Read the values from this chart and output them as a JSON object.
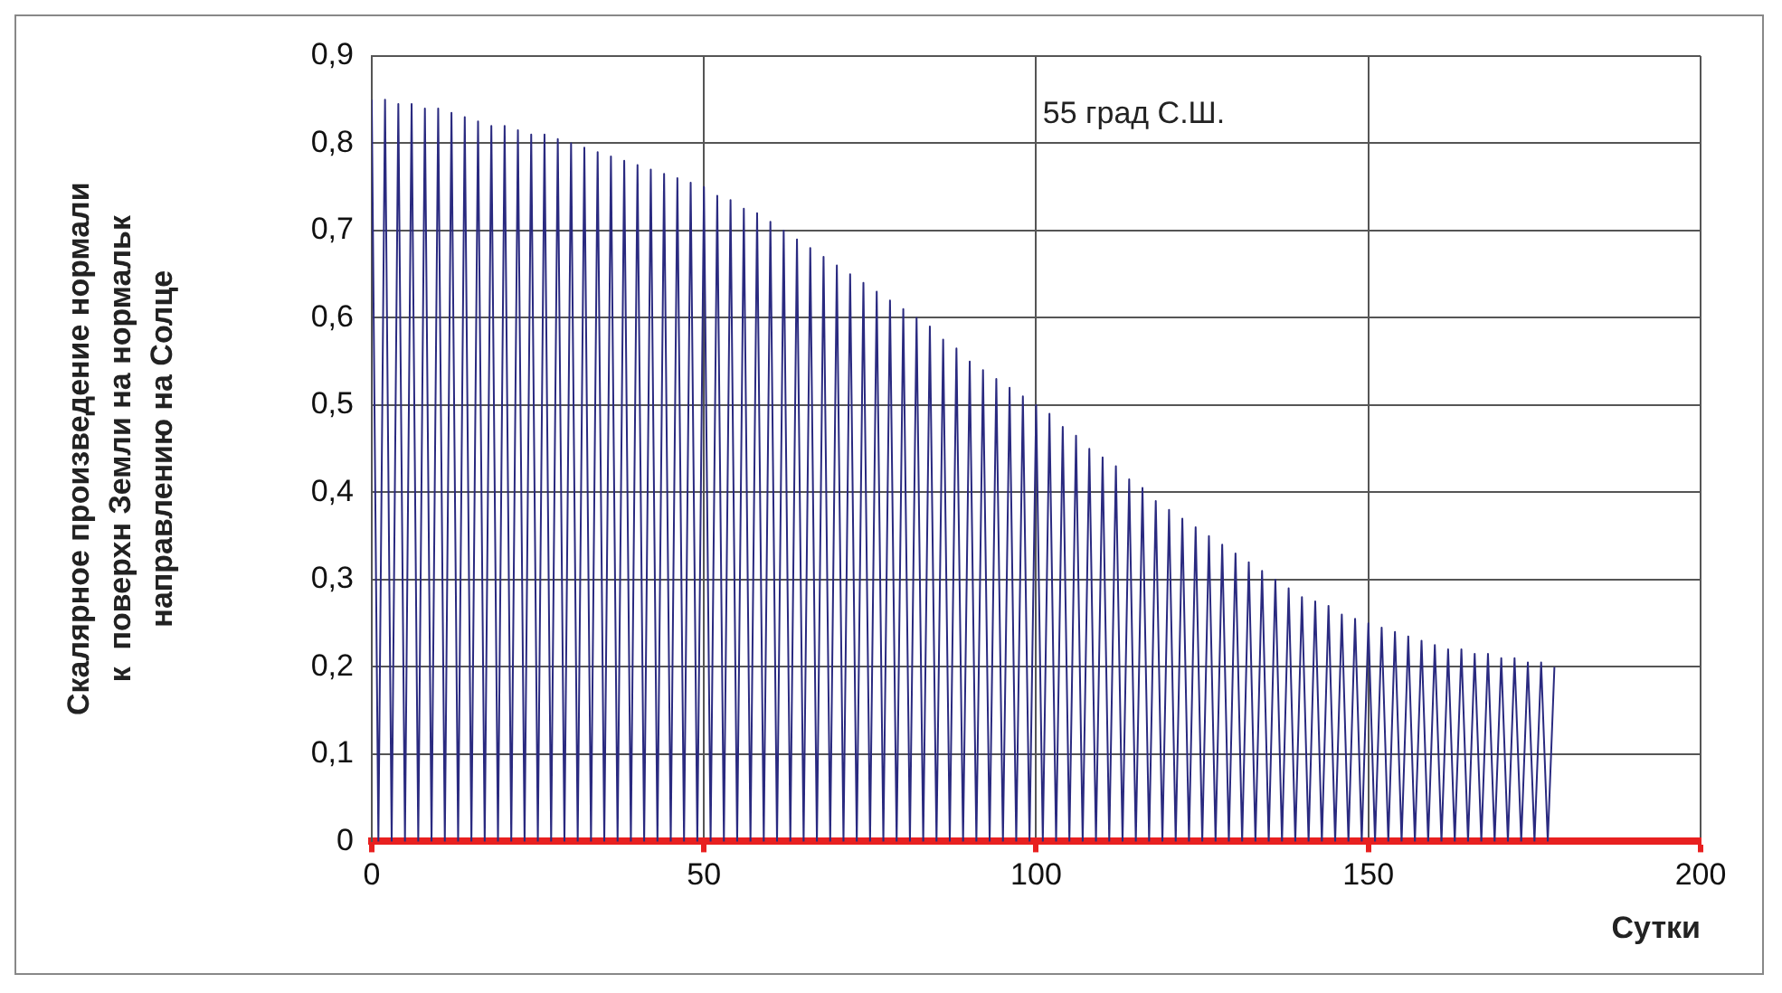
{
  "chart_data": {
    "type": "line",
    "xlabel": "Сутки",
    "ylabel": "Скалярное произведение нормали\nк  поверхн Земли на нормальк\nнаправлению на Солце",
    "annotations": [
      "55 град С.Ш."
    ],
    "x": [
      0,
      1,
      2,
      3,
      4,
      5,
      6,
      7,
      8,
      9,
      10,
      11,
      12,
      13,
      14,
      15,
      16,
      17,
      18,
      19,
      20,
      21,
      22,
      23,
      24,
      25,
      26,
      27,
      28,
      29,
      30,
      31,
      32,
      33,
      34,
      35,
      36,
      37,
      38,
      39,
      40,
      41,
      42,
      43,
      44,
      45,
      46,
      47,
      48,
      49,
      50,
      51,
      52,
      53,
      54,
      55,
      56,
      57,
      58,
      59,
      60,
      61,
      62,
      63,
      64,
      65,
      66,
      67,
      68,
      69,
      70,
      71,
      72,
      73,
      74,
      75,
      76,
      77,
      78,
      79,
      80,
      81,
      82,
      83,
      84,
      85,
      86,
      87,
      88,
      89,
      90,
      91,
      92,
      93,
      94,
      95,
      96,
      97,
      98,
      99,
      100,
      101,
      102,
      103,
      104,
      105,
      106,
      107,
      108,
      109,
      110,
      111,
      112,
      113,
      114,
      115,
      116,
      117,
      118,
      119,
      120,
      121,
      122,
      123,
      124,
      125,
      126,
      127,
      128,
      129,
      130,
      131,
      132,
      133,
      134,
      135,
      136,
      137,
      138,
      139,
      140,
      141,
      142,
      143,
      144,
      145,
      146,
      147,
      148,
      149,
      150,
      151,
      152,
      153,
      154,
      155,
      156,
      157,
      158,
      159,
      160,
      161,
      162,
      163,
      164,
      165,
      166,
      167,
      168,
      169,
      170,
      171,
      172,
      173,
      174,
      175,
      176,
      177,
      178
    ],
    "series": [
      {
        "color": "#2a2a80",
        "values": [
          0.85,
          0,
          0.85,
          0,
          0.845,
          0,
          0.845,
          0,
          0.84,
          0,
          0.84,
          0,
          0.835,
          0,
          0.83,
          0,
          0.825,
          0,
          0.82,
          0,
          0.82,
          0,
          0.815,
          0,
          0.81,
          0,
          0.81,
          0,
          0.805,
          0,
          0.8,
          0,
          0.795,
          0,
          0.79,
          0,
          0.785,
          0,
          0.78,
          0,
          0.775,
          0,
          0.77,
          0,
          0.765,
          0,
          0.76,
          0,
          0.755,
          0,
          0.75,
          0,
          0.74,
          0,
          0.735,
          0,
          0.725,
          0,
          0.72,
          0,
          0.71,
          0,
          0.7,
          0,
          0.69,
          0,
          0.68,
          0,
          0.67,
          0,
          0.66,
          0,
          0.65,
          0,
          0.64,
          0,
          0.63,
          0,
          0.62,
          0,
          0.61,
          0,
          0.6,
          0,
          0.59,
          0,
          0.575,
          0,
          0.565,
          0,
          0.55,
          0,
          0.54,
          0,
          0.53,
          0,
          0.52,
          0,
          0.51,
          0,
          0.5,
          0,
          0.49,
          0,
          0.475,
          0,
          0.465,
          0,
          0.45,
          0,
          0.44,
          0,
          0.43,
          0,
          0.415,
          0,
          0.405,
          0,
          0.39,
          0,
          0.38,
          0,
          0.37,
          0,
          0.36,
          0,
          0.35,
          0,
          0.34,
          0,
          0.33,
          0,
          0.32,
          0,
          0.31,
          0,
          0.3,
          0,
          0.29,
          0,
          0.28,
          0,
          0.275,
          0,
          0.27,
          0,
          0.26,
          0,
          0.255,
          0,
          0.25,
          0,
          0.245,
          0,
          0.24,
          0,
          0.235,
          0,
          0.23,
          0,
          0.225,
          0,
          0.22,
          0,
          0.22,
          0,
          0.215,
          0,
          0.215,
          0,
          0.21,
          0,
          0.21,
          0,
          0.205,
          0,
          0.205,
          0,
          0.2
        ]
      }
    ],
    "xlim": [
      0,
      200
    ],
    "xticks": [
      0,
      50,
      100,
      150,
      200
    ],
    "ylim": [
      0,
      0.9
    ],
    "yticks": [
      0,
      {
        "value": 0.1,
        "label": "0,1"
      },
      {
        "value": 0.2,
        "label": "0,2"
      },
      {
        "value": 0.3,
        "label": "0,3"
      },
      {
        "value": 0.4,
        "label": "0,4"
      },
      {
        "value": 0.5,
        "label": "0,5"
      },
      {
        "value": 0.6,
        "label": "0,6"
      },
      {
        "value": 0.7,
        "label": "0,7"
      },
      {
        "value": 0.8,
        "label": "0,8"
      },
      {
        "value": 0.9,
        "label": "0,9"
      }
    ],
    "grid": true,
    "legend": false
  }
}
